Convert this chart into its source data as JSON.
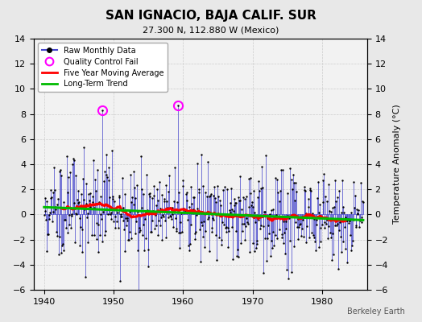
{
  "title": "SAN IGNACIO, BAJA CALIF. SUR",
  "subtitle": "27.300 N, 112.880 W (Mexico)",
  "ylabel_right": "Temperature Anomaly (°C)",
  "credit": "Berkeley Earth",
  "xlim": [
    1938.5,
    1986.5
  ],
  "ylim": [
    -6,
    14
  ],
  "yticks": [
    -6,
    -4,
    -2,
    0,
    2,
    4,
    6,
    8,
    10,
    12,
    14
  ],
  "xticks": [
    1940,
    1950,
    1960,
    1970,
    1980
  ],
  "bg_color": "#e8e8e8",
  "plot_bg_color": "#f2f2f2",
  "seed": 15,
  "n_months": 552,
  "start_year": 1940,
  "raw_color": "#4444cc",
  "ma_color": "#ff0000",
  "trend_color": "#00bb00",
  "qc_color": "#ff00ff",
  "qc_points": [
    1948.417,
    1959.25
  ],
  "qc_values": [
    8.3,
    8.7
  ],
  "figsize": [
    5.24,
    4.0
  ],
  "dpi": 100
}
